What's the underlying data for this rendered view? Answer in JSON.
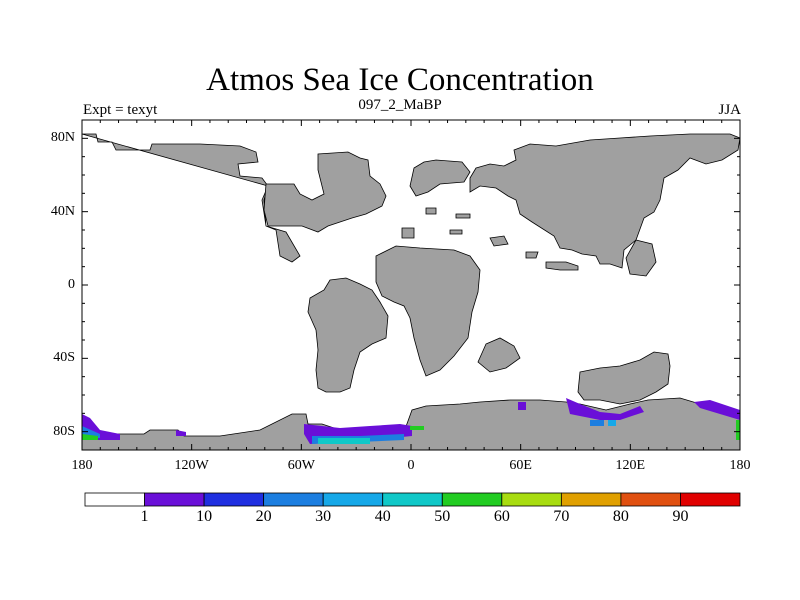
{
  "title": "Atmos Sea Ice Concentration",
  "expt_label": "Expt = texyt",
  "center_label": "097_2_MaBP",
  "season_label": "JJA",
  "map": {
    "projection": "cylindrical-equidistant",
    "lon_range": [
      -180,
      180
    ],
    "lat_range": [
      -90,
      90
    ],
    "y_ticks": [
      {
        "lat": 80,
        "label": "80N"
      },
      {
        "lat": 40,
        "label": "40N"
      },
      {
        "lat": 0,
        "label": "0"
      },
      {
        "lat": -40,
        "label": "40S"
      },
      {
        "lat": -80,
        "label": "80S"
      }
    ],
    "x_ticks": [
      {
        "lon": -180,
        "label": "180"
      },
      {
        "lon": -120,
        "label": "120W"
      },
      {
        "lon": -60,
        "label": "60W"
      },
      {
        "lon": 0,
        "label": "0"
      },
      {
        "lon": 60,
        "label": "60E"
      },
      {
        "lon": 120,
        "label": "120E"
      },
      {
        "lon": 180,
        "label": "180"
      }
    ],
    "land_color": "#a0a0a0",
    "ocean_color": "#ffffff"
  },
  "colorbar": {
    "colors": [
      "#ffffff",
      "#6a0fd8",
      "#1f2fe0",
      "#1c7ee0",
      "#16a8e8",
      "#10c8c8",
      "#22cc22",
      "#a8dc10",
      "#e0a000",
      "#e05010",
      "#e00000"
    ],
    "labels": [
      "1",
      "10",
      "20",
      "30",
      "40",
      "50",
      "60",
      "70",
      "80",
      "90"
    ]
  }
}
